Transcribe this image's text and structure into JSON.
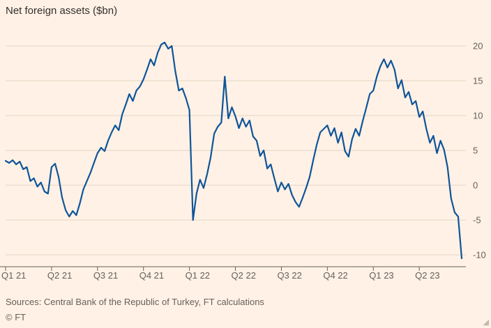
{
  "chart": {
    "title": "Net foreign assets ($bn)",
    "source": "Sources: Central Bank of the Republic of Turkey, FT calculations",
    "copyright": "© FT"
  },
  "chart_data": {
    "type": "line",
    "title": "Net foreign assets ($bn)",
    "x_unit": "weeks since start of Q1 2021",
    "x_tick_labels": [
      "Q1 21",
      "Q2 21",
      "Q3 21",
      "Q4 21",
      "Q1 22",
      "Q2 22",
      "Q3 22",
      "Q4 22",
      "Q1 23",
      "Q2 23"
    ],
    "x_tick_indices": [
      0,
      13,
      26,
      39,
      52,
      65,
      78,
      91,
      104,
      117
    ],
    "yticks": [
      -10,
      -5,
      0,
      5,
      10,
      15,
      20
    ],
    "ylim": [
      -10,
      20
    ],
    "grid": "horizontal",
    "legend": "none",
    "line_color": "#0F5499",
    "grid_color": "#e3d5c3",
    "axis_color": "#66605C",
    "background_color": "#FFF1E5",
    "series": [
      {
        "name": "Net foreign assets ($bn)",
        "values": [
          3.5,
          3.2,
          3.6,
          3.0,
          3.4,
          2.3,
          2.6,
          0.6,
          1.0,
          -0.2,
          0.4,
          -0.9,
          -1.2,
          2.6,
          3.1,
          1.2,
          -1.8,
          -3.6,
          -4.5,
          -3.7,
          -4.3,
          -2.6,
          -0.6,
          0.6,
          1.8,
          3.2,
          4.6,
          5.4,
          4.9,
          6.4,
          7.6,
          8.6,
          7.9,
          10.2,
          11.6,
          13.1,
          12.1,
          13.6,
          14.2,
          15.2,
          16.6,
          18.1,
          17.2,
          19.0,
          20.2,
          20.5,
          19.6,
          20.0,
          16.4,
          13.6,
          13.9,
          12.5,
          10.8,
          -5.0,
          -1.2,
          0.8,
          -0.4,
          1.6,
          4.0,
          7.4,
          8.4,
          9.0,
          15.6,
          9.6,
          11.2,
          9.9,
          8.2,
          9.6,
          8.4,
          9.3,
          7.0,
          6.4,
          4.2,
          5.0,
          2.4,
          3.0,
          1.0,
          -0.9,
          0.4,
          -0.6,
          0.2,
          -1.4,
          -2.4,
          -3.1,
          -1.8,
          -0.4,
          1.2,
          3.6,
          5.8,
          7.6,
          8.1,
          8.6,
          7.1,
          8.2,
          6.1,
          7.6,
          4.9,
          4.1,
          6.6,
          8.1,
          7.1,
          9.2,
          11.1,
          13.1,
          13.6,
          15.6,
          17.1,
          18.1,
          16.9,
          17.9,
          16.6,
          13.9,
          15.1,
          12.6,
          13.4,
          11.6,
          12.1,
          9.8,
          10.6,
          8.1,
          6.1,
          7.1,
          4.6,
          6.4,
          5.1,
          2.6,
          -1.9,
          -3.9,
          -4.5,
          -10.5
        ]
      }
    ]
  }
}
